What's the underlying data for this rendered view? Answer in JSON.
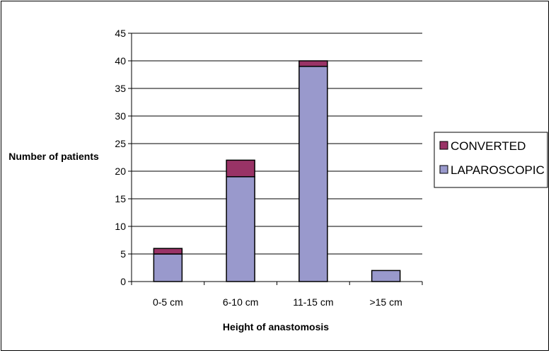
{
  "chart_data": {
    "type": "bar",
    "stacked": true,
    "title": "",
    "xlabel": "Height of anastomosis",
    "ylabel": "Number of patients",
    "categories": [
      "0-5 cm",
      "6-10 cm",
      "11-15 cm",
      ">15 cm"
    ],
    "series": [
      {
        "name": "LAPAROSCOPIC",
        "color": "#9999cc",
        "values": [
          5,
          19,
          39,
          2
        ]
      },
      {
        "name": "CONVERTED",
        "color": "#993366",
        "values": [
          1,
          3,
          1,
          0
        ]
      }
    ],
    "ylim": [
      0,
      45
    ],
    "yticks": [
      0,
      5,
      10,
      15,
      20,
      25,
      30,
      35,
      40,
      45
    ],
    "grid": true,
    "legend_position": "right",
    "legend_order": [
      "CONVERTED",
      "LAPAROSCOPIC"
    ]
  }
}
